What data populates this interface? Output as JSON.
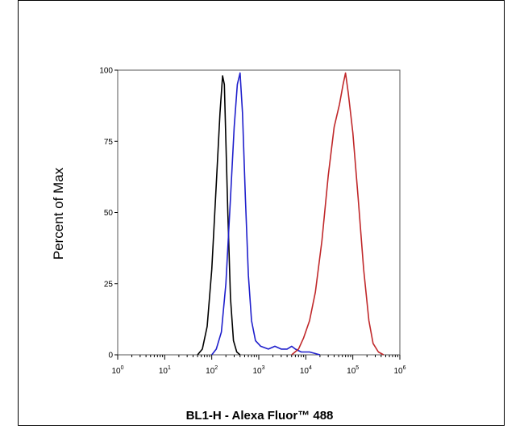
{
  "chart_data": {
    "type": "line",
    "title": "",
    "xlabel": "BL1-H - Alexa Fluor™ 488",
    "ylabel": "Percent of Max",
    "x_scale": "log",
    "xlim": [
      1,
      1000000
    ],
    "ylim": [
      0,
      100
    ],
    "grid": false,
    "legend": "none",
    "x_ticks": [
      {
        "base": "10",
        "exp": "0",
        "value": 1
      },
      {
        "base": "10",
        "exp": "1",
        "value": 10
      },
      {
        "base": "10",
        "exp": "2",
        "value": 100
      },
      {
        "base": "10",
        "exp": "3",
        "value": 1000
      },
      {
        "base": "10",
        "exp": "4",
        "value": 10000
      },
      {
        "base": "10",
        "exp": "5",
        "value": 100000
      },
      {
        "base": "10",
        "exp": "6",
        "value": 1000000
      }
    ],
    "y_ticks": [
      "0",
      "25",
      "50",
      "75",
      "100"
    ],
    "series": [
      {
        "color": "#000000",
        "points": [
          [
            50,
            0
          ],
          [
            63,
            2
          ],
          [
            80,
            10
          ],
          [
            100,
            30
          ],
          [
            125,
            60
          ],
          [
            150,
            85
          ],
          [
            170,
            98
          ],
          [
            185,
            95
          ],
          [
            200,
            75
          ],
          [
            220,
            50
          ],
          [
            250,
            20
          ],
          [
            290,
            5
          ],
          [
            340,
            1
          ],
          [
            400,
            0
          ]
        ]
      },
      {
        "color": "#1f1fcc",
        "points": [
          [
            100,
            0
          ],
          [
            125,
            2
          ],
          [
            160,
            8
          ],
          [
            200,
            25
          ],
          [
            250,
            55
          ],
          [
            300,
            80
          ],
          [
            350,
            95
          ],
          [
            400,
            99
          ],
          [
            450,
            85
          ],
          [
            520,
            55
          ],
          [
            600,
            28
          ],
          [
            700,
            12
          ],
          [
            850,
            5
          ],
          [
            1100,
            3
          ],
          [
            1600,
            2
          ],
          [
            2200,
            3
          ],
          [
            3000,
            2
          ],
          [
            4000,
            2
          ],
          [
            5000,
            3
          ],
          [
            6000,
            2
          ],
          [
            8000,
            1
          ],
          [
            12000,
            1
          ],
          [
            20000,
            0
          ]
        ]
      },
      {
        "color": "#c0282a",
        "points": [
          [
            5000,
            0
          ],
          [
            7000,
            2
          ],
          [
            9000,
            6
          ],
          [
            12000,
            12
          ],
          [
            16000,
            22
          ],
          [
            22000,
            40
          ],
          [
            30000,
            63
          ],
          [
            40000,
            80
          ],
          [
            52000,
            88
          ],
          [
            62000,
            95
          ],
          [
            70000,
            99
          ],
          [
            80000,
            92
          ],
          [
            100000,
            78
          ],
          [
            130000,
            55
          ],
          [
            170000,
            30
          ],
          [
            220000,
            12
          ],
          [
            270000,
            4
          ],
          [
            350000,
            1
          ],
          [
            450000,
            0
          ]
        ]
      }
    ]
  }
}
